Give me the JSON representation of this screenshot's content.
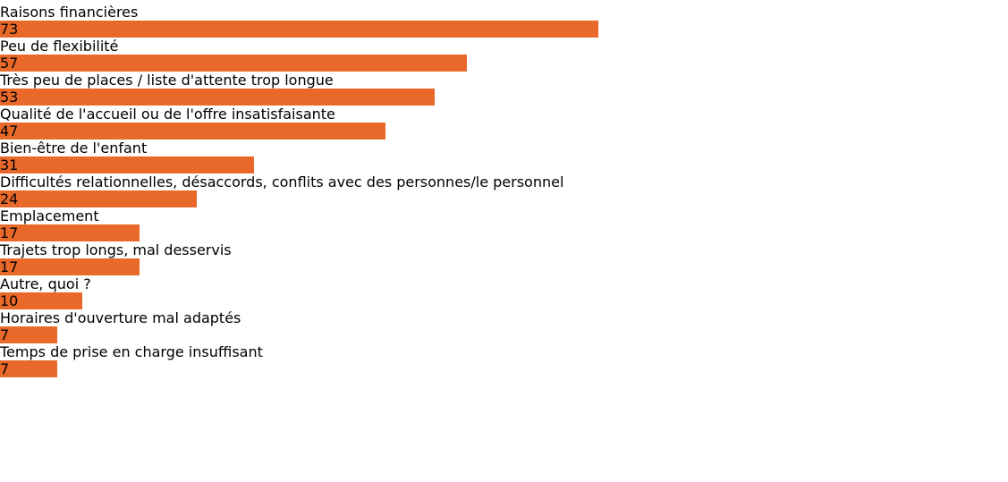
{
  "chart_data": {
    "type": "bar",
    "orientation": "horizontal",
    "categories": [
      "Raisons financières",
      "Peu de flexibilité",
      "Très peu de places / liste d'attente trop longue",
      "Qualité de l'accueil ou de l'offre insatisfaisante",
      "Bien-être de l'enfant",
      "Difficultés relationnelles, désaccords, conflits avec des personnes/le personnel",
      "Emplacement",
      "Trajets trop longs, mal desservis",
      "Autre, quoi ?",
      "Horaires d'ouverture mal adaptés",
      "Temps de prise en charge insuffisant"
    ],
    "values": [
      73,
      57,
      53,
      47,
      31,
      24,
      17,
      17,
      10,
      7,
      7
    ],
    "color": "#e8692a",
    "xlim": [
      0,
      73
    ]
  }
}
